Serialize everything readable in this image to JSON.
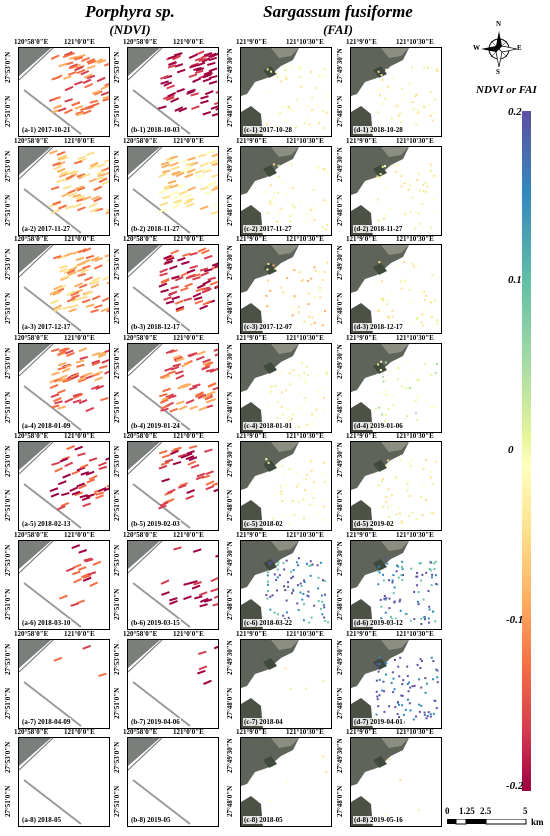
{
  "titles": {
    "left_title": "Porphyra sp.",
    "left_subtitle": "(NDVI)",
    "right_title": "Sargassum fusiforme",
    "right_subtitle": "(FAI)"
  },
  "coordinates": {
    "a_top": [
      "120°58'0\"E",
      "121°0'0\"E"
    ],
    "b_top": [
      "120°58'0\"E",
      "121°0'0\"E"
    ],
    "c_top": [
      "121°9'0\"E",
      "121°10'30\"E"
    ],
    "d_top": [
      "121°9'0\"E",
      "121°10'30\"E"
    ],
    "ab_left": [
      "27°51'0\"N",
      "27°53'0\"N"
    ],
    "cd_left": [
      "27°48'0\"N",
      "27°49'30\"N"
    ]
  },
  "panels": {
    "a": [
      "(a-1) 2017-10-21",
      "(a-2) 2017-11-27",
      "(a-3) 2017-12-17",
      "(a-4) 2018-01-09",
      "(a-5) 2018-02-13",
      "(a-6) 2018-03-10",
      "(a-7) 2018-04-09",
      "(a-8) 2018-05"
    ],
    "b": [
      "(b-1) 2018-10-03",
      "(b-2) 2018-11-27",
      "(b-3) 2018-12-17",
      "(b-4) 2019-01-24",
      "(b-5) 2019-02-03",
      "(b-6) 2019-03-15",
      "(b-7) 2019-04-06",
      "(b-8) 2019-05"
    ],
    "c": [
      "(c-1) 2017-10-28",
      "(c-2) 2017-11-27",
      "(c-3) 2017-12-07",
      "(c-4) 2018-01-01",
      "(c-5) 2018-02",
      "(c-6) 2018-03-22",
      "(c-7) 2018-04",
      "(c-8) 2018-05"
    ],
    "d": [
      "(d-1) 2018-10-28",
      "(d-2) 2018-11-27",
      "(d-3) 2018-12-17",
      "(d-4) 2019-01-06",
      "(d-5) 2019-02",
      "(d-6) 2019-03-12",
      "(d-7) 2019-04-01",
      "(d-8) 2019-05-16"
    ]
  },
  "legend": {
    "title": "NDVI or FAI",
    "ticks": [
      "0.2",
      "0.1",
      "0",
      "-0.1",
      "-0.2"
    ],
    "tick_values": [
      0.2,
      0.1,
      0,
      -0.1,
      -0.2
    ],
    "colors": [
      "#5e4fa2",
      "#3288bd",
      "#66c2a5",
      "#abdda4",
      "#e6f598",
      "#ffffbf",
      "#fee08b",
      "#fdae61",
      "#f46d43",
      "#d53e4f",
      "#9e0142"
    ]
  },
  "compass": {
    "n": "N",
    "s": "S",
    "e": "E",
    "w": "W"
  },
  "scalebar": {
    "labels": [
      "0",
      "1.25",
      "2.5",
      "5"
    ],
    "unit": "km"
  }
}
